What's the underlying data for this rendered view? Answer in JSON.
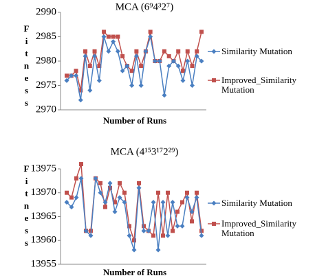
{
  "chart_data": [
    {
      "type": "line",
      "title": "MCA (6⁹4³2⁷)",
      "xlabel": "Number of Runs",
      "ylabel": "Fitness",
      "ylim": [
        2970,
        2990
      ],
      "yticks": [
        2970,
        2975,
        2980,
        2985,
        2990
      ],
      "series": [
        {
          "name": "Similarity Mutation",
          "color": "#4a7fc1",
          "values": [
            2976,
            2977,
            2977,
            2972,
            2981,
            2974,
            2981,
            2976,
            2985,
            2982,
            2984,
            2982,
            2978,
            2979,
            2975,
            2981,
            2975,
            2982,
            2985,
            2980,
            2980,
            2973,
            2979,
            2980,
            2979,
            2976,
            2980,
            2975,
            2981,
            2980
          ]
        },
        {
          "name": "Improved_Similarity Mutation",
          "color": "#c0504d",
          "values": [
            2977,
            2977,
            2978,
            2974,
            2982,
            2979,
            2982,
            2979,
            2986,
            2985,
            2985,
            2985,
            2981,
            2979,
            2978,
            2982,
            2979,
            2982,
            2986,
            2980,
            2980,
            2982,
            2981,
            2980,
            2982,
            2978,
            2982,
            2979,
            2982,
            2986
          ]
        }
      ]
    },
    {
      "type": "line",
      "title": "MCA (4¹⁵3¹⁷2²⁹)",
      "xlabel": "Number of Runs",
      "ylabel": "Fitness",
      "ylim": [
        13955,
        13975
      ],
      "yticks": [
        13955,
        13960,
        13965,
        13970,
        13975
      ],
      "series": [
        {
          "name": "Similarity Mutation",
          "color": "#4a7fc1",
          "values": [
            13968,
            13967,
            13969,
            13973,
            13962,
            13961,
            13973,
            13970,
            13968,
            13972,
            13966,
            13969,
            13968,
            13961,
            13958,
            13971,
            13962,
            13962,
            13968,
            13958,
            13968,
            13961,
            13968,
            13963,
            13963,
            13969,
            13966,
            13969,
            13961
          ]
        },
        {
          "name": "Improved_Similarity Mutation",
          "color": "#c0504d",
          "values": [
            13970,
            13969,
            13973,
            13976,
            13962,
            13962,
            13973,
            13972,
            13967,
            13971,
            13968,
            13972,
            13970,
            13963,
            13960,
            13972,
            13963,
            13962,
            13961,
            13970,
            13961,
            13970,
            13962,
            13966,
            13968,
            13970,
            13964,
            13970,
            13962
          ]
        }
      ]
    }
  ]
}
